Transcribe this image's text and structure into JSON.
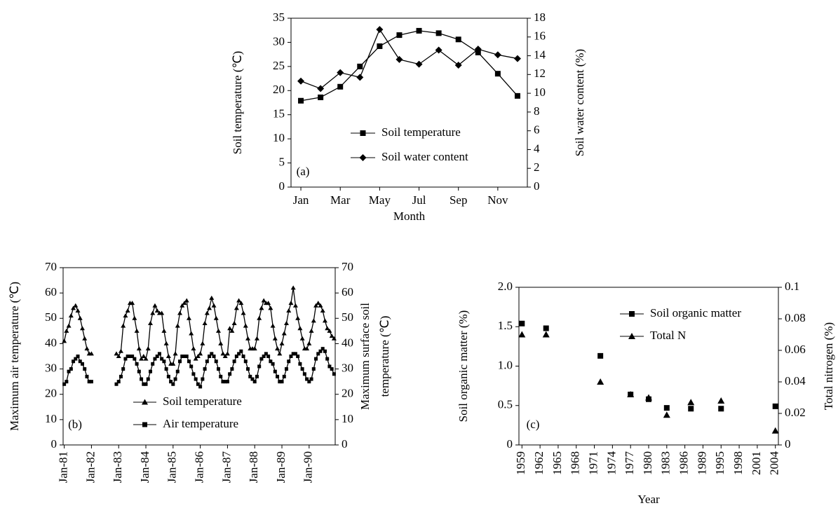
{
  "chart_data": [
    {
      "type": "line",
      "annotation": "(a)",
      "xlabel": "Month",
      "ylabel": "Soil temperature (℃)",
      "y2label": "Soil water content (%)",
      "categories": [
        "Jan",
        null,
        "Mar",
        null,
        "May",
        null,
        "Jul",
        null,
        "Sep",
        null,
        "Nov",
        null
      ],
      "ylim": [
        0,
        35
      ],
      "yticks": [
        0,
        5,
        10,
        15,
        20,
        25,
        30,
        35
      ],
      "y2lim": [
        0,
        18
      ],
      "y2ticks": [
        0,
        2,
        4,
        6,
        8,
        10,
        12,
        14,
        16,
        18
      ],
      "series": [
        {
          "name": "Soil temperature",
          "color": "#000000",
          "marker": "square",
          "values": [
            17.9,
            18.6,
            20.8,
            25.0,
            29.2,
            31.5,
            32.4,
            31.9,
            30.6,
            27.9,
            23.5,
            18.9
          ]
        },
        {
          "name": "Soil water content",
          "color": "#000000",
          "marker": "diamond",
          "axis": "y2",
          "values": [
            11.3,
            10.5,
            12.2,
            11.7,
            16.8,
            13.6,
            13.1,
            14.6,
            13.0,
            14.7,
            14.1,
            13.7
          ]
        }
      ]
    },
    {
      "type": "line",
      "annotation": "(b)",
      "ylabel": "Maximum air temperature (℃)",
      "y2label": [
        "Maximum surface soil",
        "temperature (℃)"
      ],
      "categories": [
        "Jan-81",
        null,
        null,
        null,
        null,
        null,
        null,
        null,
        null,
        null,
        null,
        null,
        "Jan-82",
        null,
        null,
        null,
        null,
        null,
        null,
        null,
        null,
        null,
        null,
        null,
        "Jan-83",
        null,
        null,
        null,
        null,
        null,
        null,
        null,
        null,
        null,
        null,
        null,
        "Jan-84",
        null,
        null,
        null,
        null,
        null,
        null,
        null,
        null,
        null,
        null,
        null,
        "Jan-85",
        null,
        null,
        null,
        null,
        null,
        null,
        null,
        null,
        null,
        null,
        null,
        "Jan-86",
        null,
        null,
        null,
        null,
        null,
        null,
        null,
        null,
        null,
        null,
        null,
        "Jan-87",
        null,
        null,
        null,
        null,
        null,
        null,
        null,
        null,
        null,
        null,
        null,
        "Jan-88",
        null,
        null,
        null,
        null,
        null,
        null,
        null,
        null,
        null,
        null,
        null,
        "Jan-89",
        null,
        null,
        null,
        null,
        null,
        null,
        null,
        null,
        null,
        null,
        null,
        "Jan-90",
        null,
        null,
        null,
        null,
        null,
        null,
        null,
        null,
        null,
        null,
        null
      ],
      "ylim": [
        0,
        70
      ],
      "yticks": [
        0,
        10,
        20,
        30,
        40,
        50,
        60,
        70
      ],
      "y2lim": [
        0,
        70
      ],
      "y2ticks": [
        0,
        10,
        20,
        30,
        40,
        50,
        60,
        70
      ],
      "series": [
        {
          "name": "Soil temperature",
          "color": "#000000",
          "marker": "triangle",
          "values": [
            41,
            45,
            47,
            51,
            54,
            55,
            53,
            50,
            46,
            42,
            38,
            36,
            36,
            null,
            null,
            null,
            null,
            null,
            null,
            null,
            null,
            null,
            null,
            36,
            35,
            37,
            47,
            51,
            53,
            56,
            56,
            50,
            45,
            38,
            34,
            35,
            34,
            38,
            48,
            52,
            55,
            53,
            52,
            52,
            45,
            40,
            35,
            32,
            32,
            36,
            47,
            52,
            55,
            56,
            57,
            50,
            44,
            38,
            34,
            35,
            36,
            40,
            48,
            52,
            54,
            58,
            55,
            50,
            45,
            40,
            36,
            35,
            36,
            46,
            45,
            48,
            54,
            57,
            56,
            52,
            47,
            42,
            38,
            38,
            38,
            42,
            50,
            54,
            57,
            56,
            56,
            54,
            47,
            42,
            38,
            36,
            40,
            44,
            48,
            53,
            56,
            62,
            55,
            50,
            46,
            42,
            38,
            38,
            40,
            45,
            49,
            55,
            56,
            55,
            53,
            49,
            46,
            45,
            43,
            42
          ]
        },
        {
          "name": "Air temperature",
          "color": "#000000",
          "marker": "square",
          "values": [
            24,
            25,
            29,
            30,
            33,
            34,
            35,
            33,
            32,
            30,
            27,
            25,
            25,
            null,
            null,
            null,
            null,
            null,
            null,
            null,
            null,
            null,
            null,
            24,
            25,
            27,
            30,
            34,
            35,
            35,
            35,
            34,
            32,
            29,
            26,
            24,
            24,
            26,
            29,
            32,
            34,
            35,
            36,
            34,
            33,
            30,
            27,
            25,
            24,
            26,
            29,
            33,
            35,
            35,
            35,
            33,
            31,
            28,
            26,
            24,
            23,
            26,
            30,
            33,
            35,
            36,
            35,
            33,
            30,
            27,
            25,
            25,
            25,
            28,
            30,
            33,
            35,
            36,
            37,
            35,
            33,
            30,
            27,
            26,
            25,
            27,
            31,
            34,
            35,
            36,
            35,
            33,
            32,
            29,
            27,
            25,
            25,
            27,
            30,
            33,
            35,
            36,
            36,
            35,
            32,
            30,
            28,
            26,
            25,
            26,
            30,
            34,
            36,
            37,
            38,
            37,
            34,
            31,
            30,
            28
          ]
        }
      ]
    },
    {
      "type": "scatter",
      "annotation": "(c)",
      "xlabel": "Year",
      "ylabel": "Soil organic matter (%)",
      "y2label": "Total nitrogen (%)",
      "categories": [
        "1959",
        null,
        null,
        "1962",
        null,
        null,
        "1965",
        null,
        null,
        "1968",
        null,
        null,
        "1971",
        null,
        null,
        "1974",
        null,
        null,
        "1977",
        null,
        null,
        "1980",
        null,
        null,
        "1983",
        null,
        null,
        "1986",
        null,
        null,
        "1989",
        null,
        null,
        "1995",
        null,
        null,
        "1998",
        null,
        null,
        "2001",
        null,
        null,
        "2004"
      ],
      "ylim": [
        0,
        2
      ],
      "yticks": [
        0,
        0.5,
        {
          "value": 1,
          "label": "1.0"
        },
        1.5,
        {
          "value": 2,
          "label": "2.0"
        }
      ],
      "y2lim": [
        0,
        0.1
      ],
      "y2ticks": [
        0,
        0.02,
        0.04,
        0.06,
        0.08,
        0.1
      ],
      "series": [
        {
          "name": "Soil organic matter",
          "color": "#000000",
          "marker": "square",
          "values": [
            1.54,
            null,
            null,
            null,
            1.48,
            null,
            null,
            null,
            null,
            null,
            null,
            null,
            null,
            1.13,
            null,
            null,
            null,
            null,
            0.64,
            null,
            null,
            0.58,
            null,
            null,
            0.47,
            null,
            null,
            null,
            0.46,
            null,
            null,
            null,
            null,
            0.46,
            null,
            null,
            null,
            null,
            null,
            null,
            null,
            null,
            0.49
          ]
        },
        {
          "name": "Total N",
          "color": "#000000",
          "marker": "triangle",
          "axis": "y2",
          "values": [
            0.07,
            null,
            null,
            null,
            0.07,
            null,
            null,
            null,
            null,
            null,
            null,
            null,
            null,
            0.04,
            null,
            null,
            null,
            null,
            0.032,
            null,
            null,
            0.03,
            null,
            null,
            0.019,
            null,
            null,
            null,
            0.027,
            null,
            null,
            null,
            null,
            0.028,
            null,
            null,
            null,
            null,
            null,
            null,
            null,
            null,
            0.009
          ]
        }
      ]
    }
  ]
}
